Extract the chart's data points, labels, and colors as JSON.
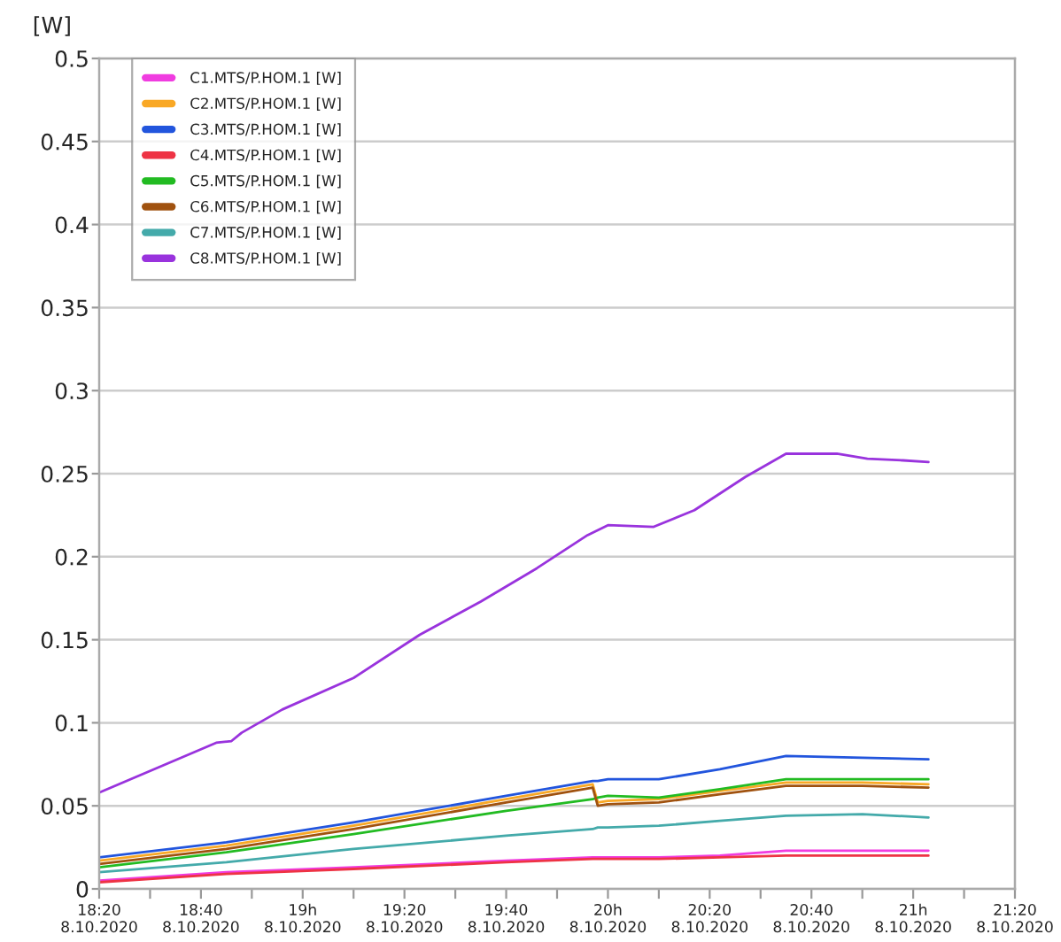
{
  "chart_data": {
    "type": "line",
    "ylabel": "[W]",
    "x": [
      "2020-10-08T18:20",
      "2020-10-08T18:45",
      "2020-10-08T19:10",
      "2020-10-08T19:40",
      "2020-10-08T19:57",
      "2020-10-08T19:58",
      "2020-10-08T20:00",
      "2020-10-08T20:10",
      "2020-10-08T20:22",
      "2020-10-08T20:35",
      "2020-10-08T20:50",
      "2020-10-08T21:03"
    ],
    "series": [
      {
        "name": "C1.MTS/P.HOM.1 [W]",
        "color": "#f03ce0",
        "values": [
          0.005,
          0.01,
          0.013,
          0.017,
          0.019,
          0.019,
          0.019,
          0.019,
          0.02,
          0.023,
          0.023,
          0.023
        ]
      },
      {
        "name": "C2.MTS/P.HOM.1 [W]",
        "color": "#f9a825",
        "values": [
          0.017,
          0.026,
          0.038,
          0.054,
          0.063,
          0.052,
          0.053,
          0.054,
          0.059,
          0.064,
          0.064,
          0.063
        ]
      },
      {
        "name": "C3.MTS/P.HOM.1 [W]",
        "color": "#2255dd",
        "values": [
          0.019,
          0.028,
          0.04,
          0.056,
          0.065,
          0.065,
          0.066,
          0.066,
          0.072,
          0.08,
          0.079,
          0.078
        ]
      },
      {
        "name": "C4.MTS/P.HOM.1 [W]",
        "color": "#ee3344",
        "values": [
          0.004,
          0.009,
          0.012,
          0.016,
          0.018,
          0.018,
          0.018,
          0.018,
          0.019,
          0.02,
          0.02,
          0.02
        ]
      },
      {
        "name": "C5.MTS/P.HOM.1 [W]",
        "color": "#22bb22",
        "values": [
          0.013,
          0.022,
          0.033,
          0.047,
          0.054,
          0.055,
          0.056,
          0.055,
          0.06,
          0.066,
          0.066,
          0.066
        ]
      },
      {
        "name": "C6.MTS/P.HOM.1 [W]",
        "color": "#a0520f",
        "values": [
          0.015,
          0.024,
          0.036,
          0.052,
          0.061,
          0.05,
          0.051,
          0.052,
          0.057,
          0.062,
          0.062,
          0.061
        ]
      },
      {
        "name": "C7.MTS/P.HOM.1 [W]",
        "color": "#44aaaa",
        "values": [
          0.01,
          0.016,
          0.024,
          0.032,
          0.036,
          0.037,
          0.037,
          0.038,
          0.041,
          0.044,
          0.045,
          0.043
        ]
      },
      {
        "name": "C8.MTS/P.HOM.1 [W]",
        "color": "#9933dd",
        "x": [
          "2020-10-08T18:20",
          "2020-10-08T18:43",
          "2020-10-08T18:46",
          "2020-10-08T18:48",
          "2020-10-08T18:56",
          "2020-10-08T19:10",
          "2020-10-08T19:23",
          "2020-10-08T19:35",
          "2020-10-08T19:46",
          "2020-10-08T19:56",
          "2020-10-08T20:00",
          "2020-10-08T20:09",
          "2020-10-08T20:17",
          "2020-10-08T20:27",
          "2020-10-08T20:35",
          "2020-10-08T20:45",
          "2020-10-08T20:51",
          "2020-10-08T20:58",
          "2020-10-08T21:03"
        ],
        "values": [
          0.058,
          0.088,
          0.089,
          0.094,
          0.108,
          0.127,
          0.153,
          0.173,
          0.193,
          0.213,
          0.219,
          0.218,
          0.228,
          0.248,
          0.262,
          0.262,
          0.259,
          0.258,
          0.257
        ]
      }
    ],
    "xlim": [
      "2020-10-08T18:20",
      "2020-10-08T21:20"
    ],
    "xticks": [
      {
        "value": "2020-10-08T18:20",
        "label": "18:20\n8.10.2020"
      },
      {
        "value": "2020-10-08T18:30",
        "label": null
      },
      {
        "value": "2020-10-08T18:40",
        "label": "18:40\n8.10.2020"
      },
      {
        "value": "2020-10-08T18:50",
        "label": null
      },
      {
        "value": "2020-10-08T19:00",
        "label": "19h\n8.10.2020"
      },
      {
        "value": "2020-10-08T19:10",
        "label": null
      },
      {
        "value": "2020-10-08T19:20",
        "label": "19:20\n8.10.2020"
      },
      {
        "value": "2020-10-08T19:30",
        "label": null
      },
      {
        "value": "2020-10-08T19:40",
        "label": "19:40\n8.10.2020"
      },
      {
        "value": "2020-10-08T19:50",
        "label": null
      },
      {
        "value": "2020-10-08T20:00",
        "label": "20h\n8.10.2020"
      },
      {
        "value": "2020-10-08T20:10",
        "label": null
      },
      {
        "value": "2020-10-08T20:20",
        "label": "20:20\n8.10.2020"
      },
      {
        "value": "2020-10-08T20:30",
        "label": null
      },
      {
        "value": "2020-10-08T20:40",
        "label": "20:40\n8.10.2020"
      },
      {
        "value": "2020-10-08T20:50",
        "label": null
      },
      {
        "value": "2020-10-08T21:00",
        "label": "21h\n8.10.2020"
      },
      {
        "value": "2020-10-08T21:10",
        "label": null
      },
      {
        "value": "2020-10-08T21:20",
        "label": "21:20\n8.10.2020"
      }
    ],
    "ylim": [
      0,
      0.5
    ],
    "yticks": [
      0,
      0.05,
      0.1,
      0.15,
      0.2,
      0.25,
      0.3,
      0.35,
      0.4,
      0.45,
      0.5
    ],
    "grid": "y",
    "legend": "top left",
    "marker": "none",
    "line_style": "solid"
  }
}
